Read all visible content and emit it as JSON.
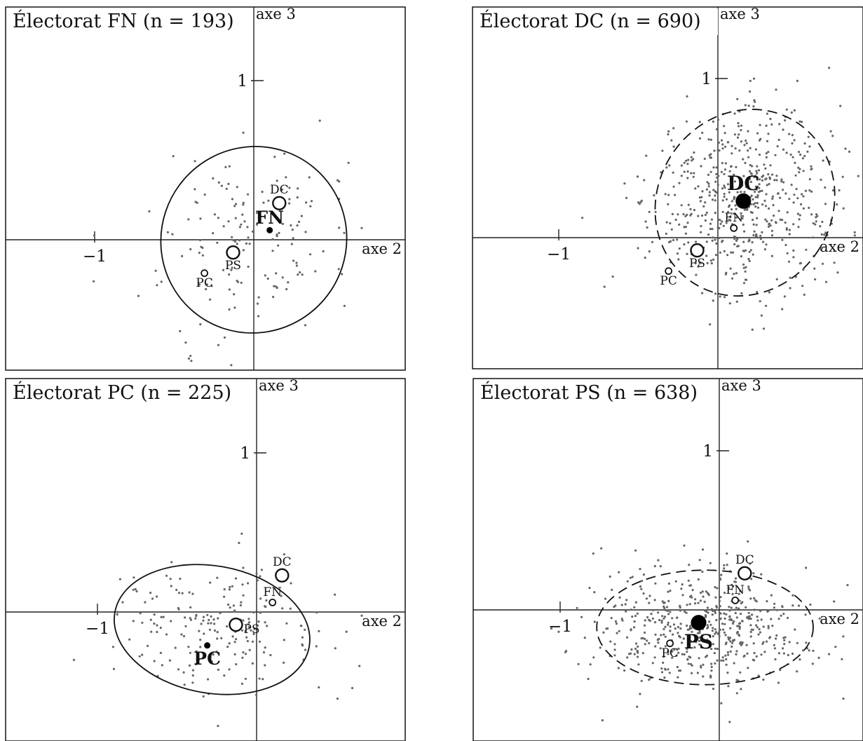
{
  "chart_data": [
    {
      "type": "scatter",
      "title": "Électorat FN (n = 193)",
      "xlabel": "axe 2",
      "ylabel": "axe 3",
      "x_tick_labels": [
        {
          "value": -1,
          "label": "−1"
        }
      ],
      "y_tick_labels": [
        {
          "value": 1,
          "label": "1"
        }
      ],
      "xlim": [
        -1.52,
        0.98
      ],
      "ylim": [
        -0.86,
        1.02
      ],
      "ellipse": {
        "style": "solid",
        "cx": 0.0,
        "cy": 0.0,
        "rx": 0.58,
        "ry": 0.59,
        "angle": -40
      },
      "party_points": [
        {
          "label": "DC",
          "x": 0.16,
          "y": 0.23,
          "size": "medium",
          "label_pos": "above"
        },
        {
          "label": "FN",
          "x": 0.1,
          "y": 0.06,
          "size": "filled-small",
          "label_pos": "above"
        },
        {
          "label": "PS",
          "x": -0.13,
          "y": -0.08,
          "size": "medium",
          "label_pos": "below"
        },
        {
          "label": "PC",
          "x": -0.31,
          "y": -0.21,
          "size": "small",
          "label_pos": "below"
        }
      ],
      "n": 193
    },
    {
      "type": "scatter",
      "title": "Électorat DC (n = 690)",
      "xlabel": "axe 2",
      "ylabel": "axe 3",
      "x_tick_labels": [
        {
          "value": -1,
          "label": "−1"
        }
      ],
      "y_tick_labels": [
        {
          "value": 1,
          "label": "1"
        }
      ],
      "xlim": [
        -1.52,
        0.98
      ],
      "ylim": [
        -0.86,
        1.02
      ],
      "ellipse": {
        "style": "dashed",
        "cx": 0.17,
        "cy": 0.22,
        "rx": 0.55,
        "ry": 0.6,
        "angle": -32
      },
      "party_points": [
        {
          "label": "DC",
          "x": 0.16,
          "y": 0.23,
          "size": "filled-large",
          "label_pos": "above"
        },
        {
          "label": "FN",
          "x": 0.1,
          "y": 0.06,
          "size": "small",
          "label_pos": "above"
        },
        {
          "label": "PS",
          "x": -0.13,
          "y": -0.08,
          "size": "medium",
          "label_pos": "below"
        },
        {
          "label": "PC",
          "x": -0.31,
          "y": -0.21,
          "size": "small",
          "label_pos": "below"
        }
      ],
      "n": 690
    },
    {
      "type": "scatter",
      "title": "Électorat PC (n = 225)",
      "xlabel": "axe 2",
      "ylabel": "axe 3",
      "x_tick_labels": [
        {
          "value": -1,
          "label": "−1"
        }
      ],
      "y_tick_labels": [
        {
          "value": 1,
          "label": "1"
        }
      ],
      "xlim": [
        -1.52,
        0.98
      ],
      "ylim": [
        -0.86,
        1.02
      ],
      "ellipse": {
        "style": "solid",
        "cx": -0.28,
        "cy": -0.11,
        "rx": 0.62,
        "ry": 0.4,
        "angle": -10
      },
      "party_points": [
        {
          "label": "DC",
          "x": 0.16,
          "y": 0.23,
          "size": "medium",
          "label_pos": "above"
        },
        {
          "label": "FN",
          "x": 0.1,
          "y": 0.06,
          "size": "small",
          "label_pos": "above"
        },
        {
          "label": "PS",
          "x": -0.13,
          "y": -0.08,
          "size": "medium",
          "label_pos": "right"
        },
        {
          "label": "PC",
          "x": -0.31,
          "y": -0.21,
          "size": "filled-small",
          "label_pos": "below"
        }
      ],
      "n": 225
    },
    {
      "type": "scatter",
      "title": "Électorat PS (n = 638)",
      "xlabel": "axe 2",
      "ylabel": "axe 3",
      "x_tick_labels": [
        {
          "value": -1,
          "label": "−1"
        }
      ],
      "y_tick_labels": [
        {
          "value": 1,
          "label": "1"
        }
      ],
      "xlim": [
        -1.52,
        0.98
      ],
      "ylim": [
        -0.86,
        1.02
      ],
      "ellipse": {
        "style": "dashed",
        "cx": -0.09,
        "cy": -0.11,
        "rx": 0.68,
        "ry": 0.36,
        "angle": 0
      },
      "party_points": [
        {
          "label": "DC",
          "x": 0.16,
          "y": 0.23,
          "size": "medium",
          "label_pos": "above"
        },
        {
          "label": "FN",
          "x": 0.1,
          "y": 0.06,
          "size": "small",
          "label_pos": "above"
        },
        {
          "label": "PS",
          "x": -0.13,
          "y": -0.08,
          "size": "filled-large",
          "label_pos": "below"
        },
        {
          "label": "PC",
          "x": -0.31,
          "y": -0.21,
          "size": "small",
          "label_pos": "below"
        }
      ],
      "n": 638
    }
  ]
}
